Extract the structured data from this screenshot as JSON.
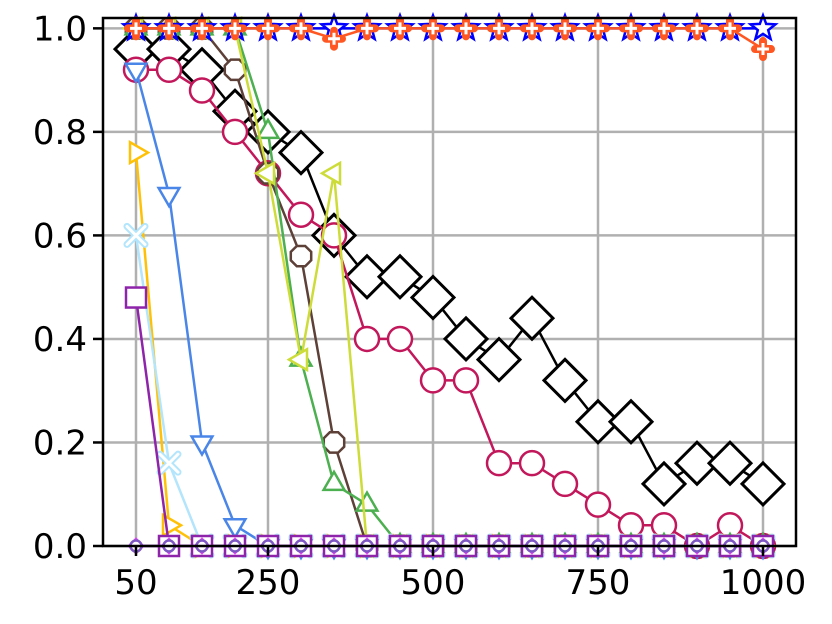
{
  "chart_data": {
    "type": "line",
    "title": "",
    "xlabel": "",
    "ylabel": "",
    "xlim": [
      0,
      1050
    ],
    "ylim": [
      0,
      1.02
    ],
    "grid": true,
    "legend": "none",
    "x_ticks": [
      {
        "value": 50,
        "label": "50"
      },
      {
        "value": 250,
        "label": "250"
      },
      {
        "value": 500,
        "label": "500"
      },
      {
        "value": 750,
        "label": "750"
      },
      {
        "value": 1000,
        "label": "1000"
      }
    ],
    "y_ticks": [
      {
        "value": 0.0,
        "label": "0.0"
      },
      {
        "value": 0.2,
        "label": "0.2"
      },
      {
        "value": 0.4,
        "label": "0.4"
      },
      {
        "value": 0.6,
        "label": "0.6"
      },
      {
        "value": 0.8,
        "label": "0.8"
      },
      {
        "value": 1.0,
        "label": "1.0"
      }
    ],
    "x": [
      50,
      100,
      150,
      200,
      250,
      300,
      350,
      400,
      450,
      500,
      550,
      600,
      650,
      700,
      750,
      800,
      850,
      900,
      950,
      1000
    ],
    "series": [
      {
        "color": "#000000",
        "marker": "diamond",
        "values": [
          0.96,
          0.96,
          0.92,
          0.84,
          0.8,
          0.76,
          0.6,
          0.52,
          0.52,
          0.48,
          0.4,
          0.36,
          0.44,
          0.32,
          0.24,
          0.24,
          0.12,
          0.16,
          0.16,
          0.12
        ]
      },
      {
        "color": "#c2185b",
        "marker": "circle",
        "values": [
          0.92,
          0.92,
          0.88,
          0.8,
          0.72,
          0.64,
          0.6,
          0.4,
          0.4,
          0.32,
          0.32,
          0.16,
          0.16,
          0.12,
          0.08,
          0.04,
          0.04,
          0.0,
          0.04,
          0.0
        ]
      },
      {
        "color": "#5d4037",
        "marker": "octagon",
        "values": [
          1.0,
          1.0,
          1.0,
          0.92,
          0.72,
          0.56,
          0.2,
          0.0,
          0.0,
          0.0,
          0.0,
          0.0,
          0.0,
          0.0,
          0.0,
          0.0,
          0.0,
          0.0,
          0.0,
          0.0
        ]
      },
      {
        "color": "#4caf50",
        "marker": "triangle-up",
        "values": [
          1.0,
          1.0,
          1.0,
          1.0,
          0.8,
          0.36,
          0.12,
          0.08,
          0.0,
          0.0,
          0.0,
          0.0,
          0.0,
          0.0,
          0.0,
          0.0,
          0.0,
          0.0,
          0.0,
          0.0
        ]
      },
      {
        "color": "#cddc39",
        "marker": "triangle-left",
        "values": [
          1.0,
          1.0,
          1.0,
          1.0,
          0.72,
          0.36,
          0.72,
          0.0,
          0.0,
          0.0,
          0.0,
          0.0,
          0.0,
          0.0,
          0.0,
          0.0,
          0.0,
          0.0,
          0.0,
          0.0
        ]
      },
      {
        "color": "#4a86e8",
        "marker": "triangle-down",
        "values": [
          0.92,
          0.68,
          0.2,
          0.04,
          0.0,
          0.0,
          0.0,
          0.0,
          0.0,
          0.0,
          0.0,
          0.0,
          0.0,
          0.0,
          0.0,
          0.0,
          0.0,
          0.0,
          0.0,
          0.0
        ]
      },
      {
        "color": "#ffc107",
        "marker": "triangle-right",
        "values": [
          0.76,
          0.04,
          0.0,
          0.0,
          0.0,
          0.0,
          0.0,
          0.0,
          0.0,
          0.0,
          0.0,
          0.0,
          0.0,
          0.0,
          0.0,
          0.0,
          0.0,
          0.0,
          0.0,
          0.0
        ]
      },
      {
        "color": "#b3e5fc",
        "marker": "x-filled",
        "values": [
          0.6,
          0.16,
          0.0,
          0.0,
          0.0,
          0.0,
          0.0,
          0.0,
          0.0,
          0.0,
          0.0,
          0.0,
          0.0,
          0.0,
          0.0,
          0.0,
          0.0,
          0.0,
          0.0,
          0.0
        ]
      },
      {
        "color": "#8e24aa",
        "marker": "square",
        "values": [
          0.48,
          0.0,
          0.0,
          0.0,
          0.0,
          0.0,
          0.0,
          0.0,
          0.0,
          0.0,
          0.0,
          0.0,
          0.0,
          0.0,
          0.0,
          0.0,
          0.0,
          0.0,
          0.0,
          0.0
        ]
      },
      {
        "color": "#e040fb",
        "marker": "small-diamond",
        "values": [
          0.0,
          0.0,
          0.0,
          0.0,
          0.0,
          0.0,
          0.0,
          0.0,
          0.0,
          0.0,
          0.0,
          0.0,
          0.0,
          0.0,
          0.0,
          0.0,
          0.0,
          0.0,
          0.0,
          0.0
        ]
      },
      {
        "color": "#7e57c2",
        "marker": "small-circle",
        "values": [
          0.0,
          0.0,
          0.0,
          0.0,
          0.0,
          0.0,
          0.0,
          0.0,
          0.0,
          0.0,
          0.0,
          0.0,
          0.0,
          0.0,
          0.0,
          0.0,
          0.0,
          0.0,
          0.0,
          0.0
        ]
      },
      {
        "color": "#0000ff",
        "marker": "star",
        "values": [
          1.0,
          1.0,
          1.0,
          1.0,
          1.0,
          1.0,
          1.0,
          1.0,
          1.0,
          1.0,
          1.0,
          1.0,
          1.0,
          1.0,
          1.0,
          1.0,
          1.0,
          1.0,
          1.0,
          1.0
        ]
      },
      {
        "color": "#ff5722",
        "marker": "plus-filled",
        "values": [
          1.0,
          1.0,
          1.0,
          1.0,
          1.0,
          1.0,
          0.98,
          1.0,
          1.0,
          1.0,
          1.0,
          1.0,
          1.0,
          1.0,
          1.0,
          1.0,
          1.0,
          1.0,
          1.0,
          0.96
        ]
      }
    ]
  }
}
